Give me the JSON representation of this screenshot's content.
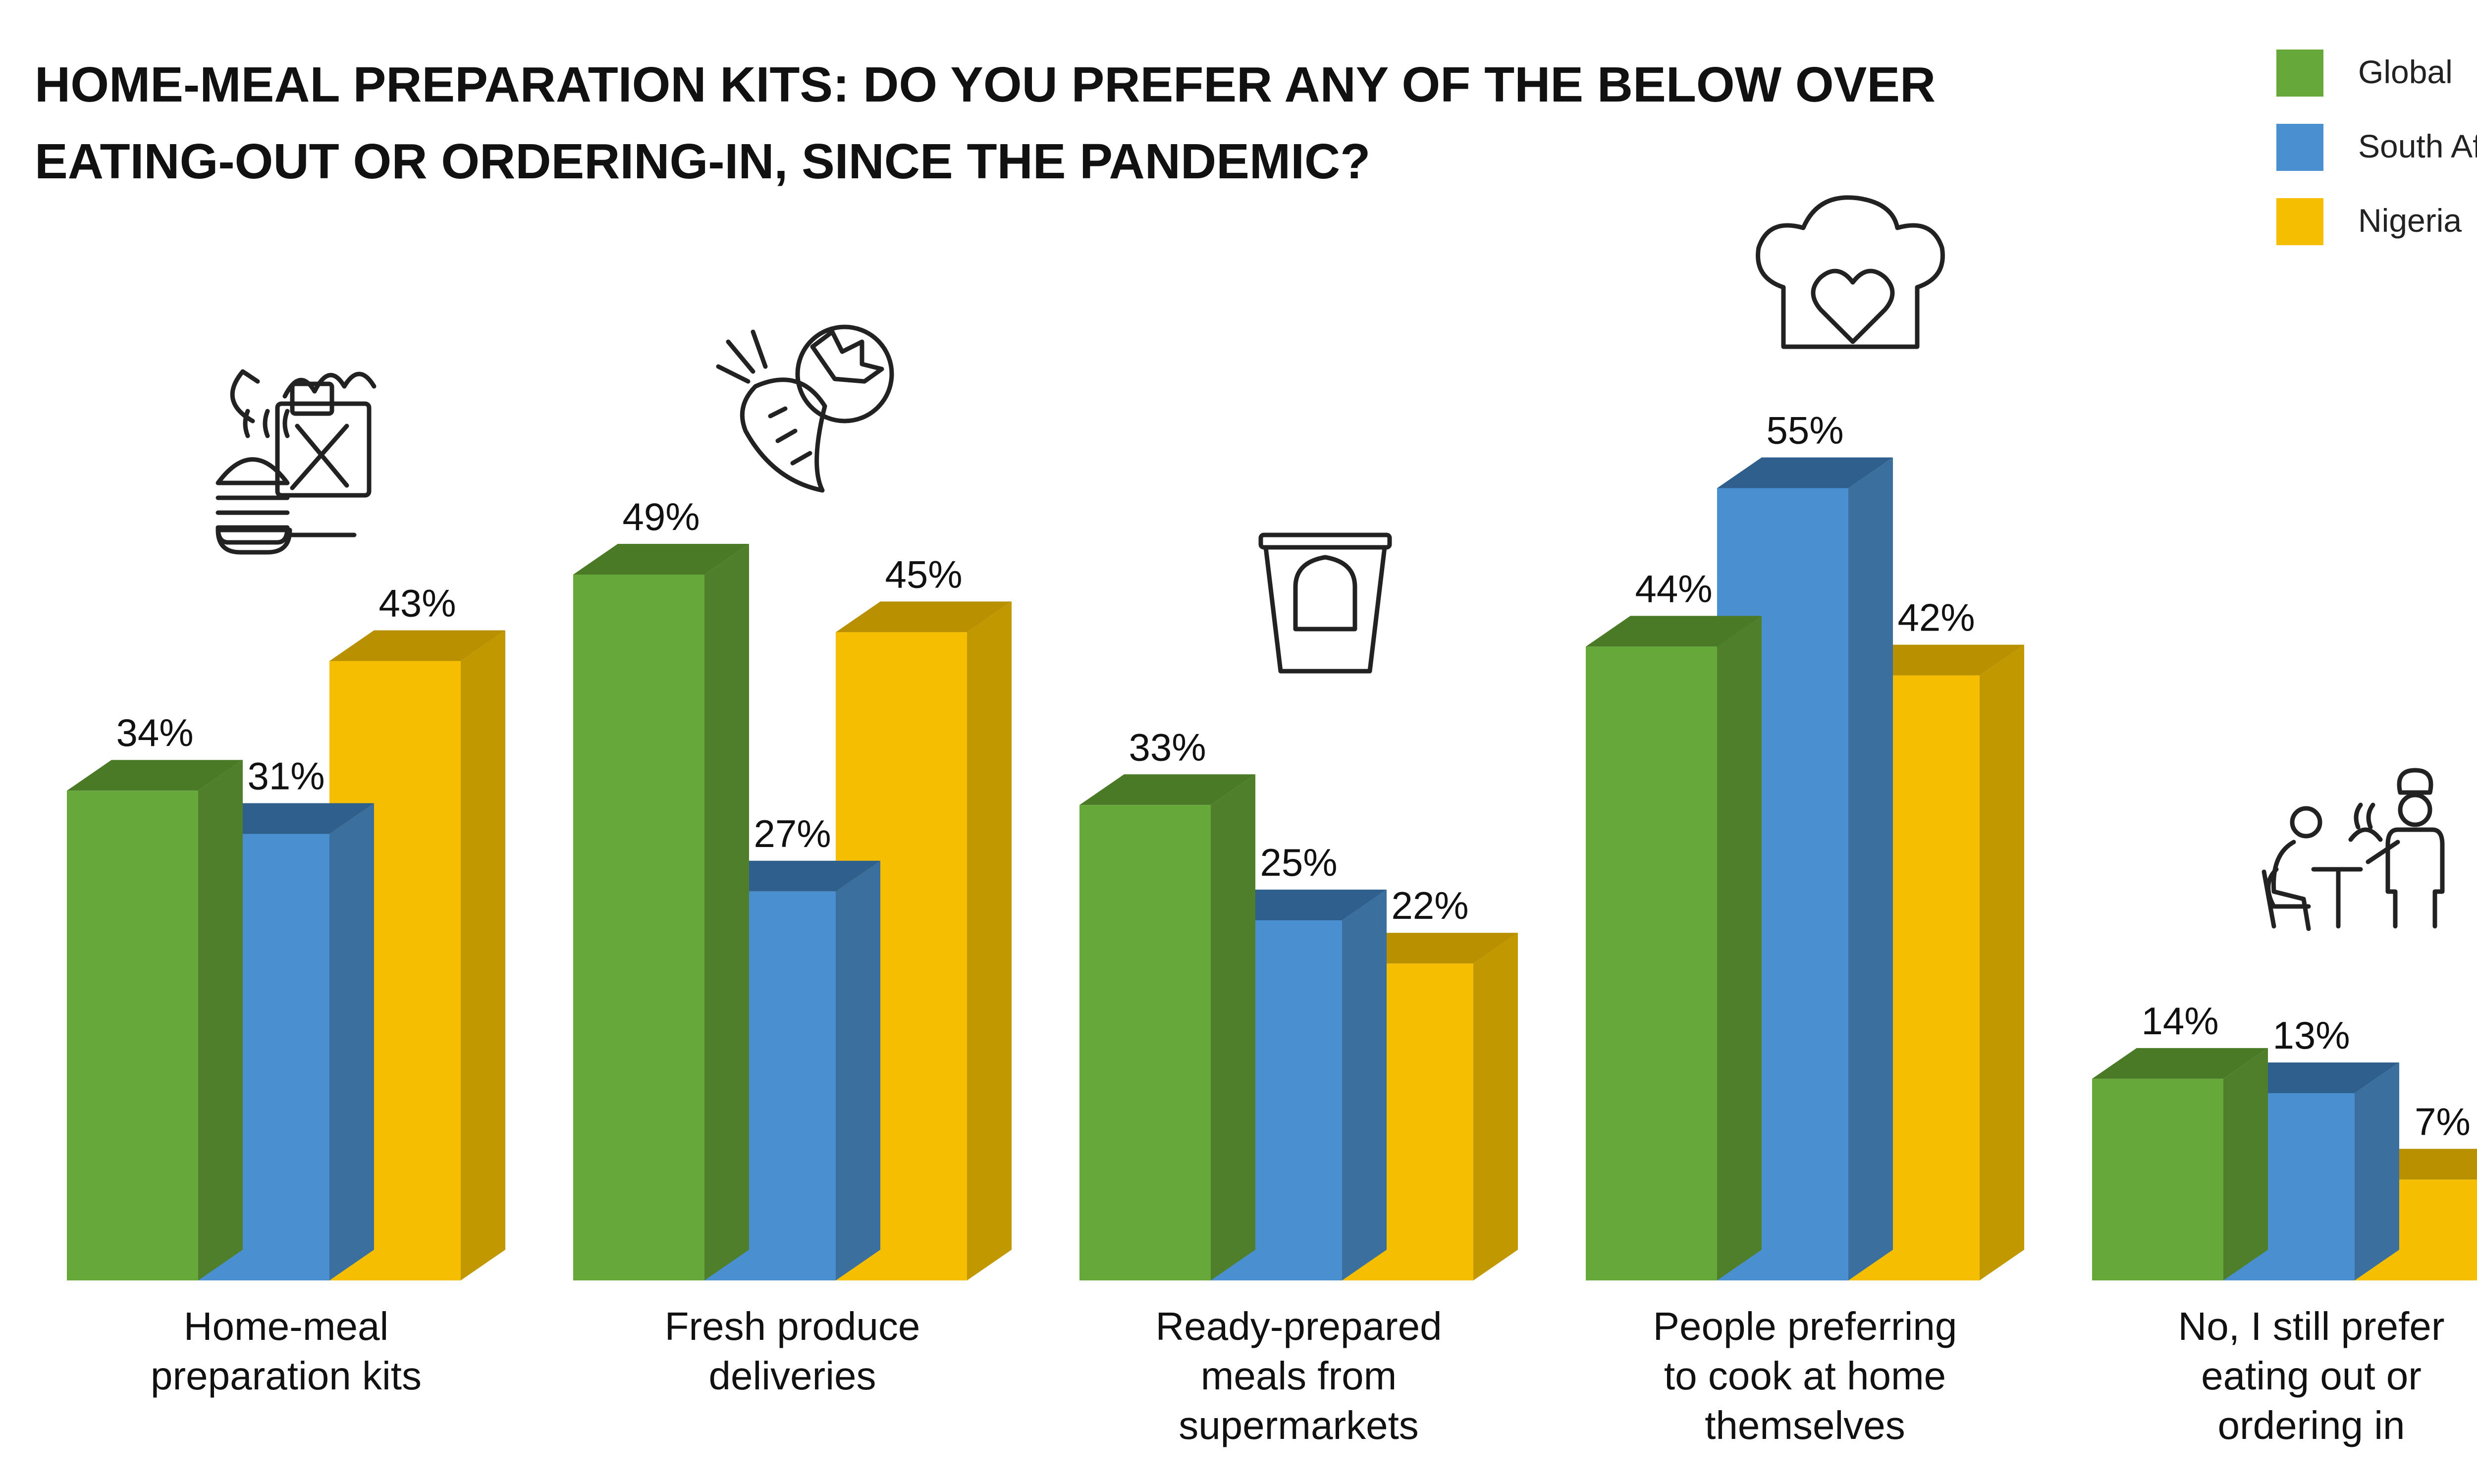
{
  "chart_data": {
    "type": "bar",
    "title": "HOME-MEAL PREPARATION KITS: DO YOU PREFER ANY OF THE BELOW OVER EATING-OUT OR ORDERING-IN, SINCE THE PANDEMIC?",
    "title_lines": [
      "HOME-MEAL PREPARATION KITS: DO YOU PREFER ANY OF THE BELOW OVER",
      "EATING-OUT OR ORDERING-IN, SINCE THE PANDEMIC?"
    ],
    "categories": [
      "Home-meal preparation kits",
      "Fresh produce deliveries",
      "Ready-prepared meals from supermarkets",
      "People preferring to cook at home themselves",
      "No, I still prefer eating out or ordering in"
    ],
    "category_lines": [
      [
        "Home-meal",
        "preparation kits"
      ],
      [
        "Fresh produce",
        "deliveries"
      ],
      [
        "Ready-prepared",
        "meals from",
        "supermarkets"
      ],
      [
        "People preferring",
        "to cook at home",
        "themselves"
      ],
      [
        "No, I still prefer",
        "eating out or",
        "ordering in"
      ]
    ],
    "series": [
      {
        "name": "Global",
        "color": "#66A83A",
        "side_color": "#4F7F2B",
        "top_color": "#4A7A26",
        "values": [
          34,
          49,
          33,
          44,
          14
        ]
      },
      {
        "name": "South Africa",
        "color": "#4A8FD0",
        "side_color": "#3A6F9E",
        "top_color": "#2F5F8C",
        "values": [
          31,
          27,
          25,
          55,
          13
        ]
      },
      {
        "name": "Nigeria",
        "color": "#F5BE00",
        "side_color": "#C29800",
        "top_color": "#B89000",
        "values": [
          43,
          45,
          22,
          42,
          7
        ]
      }
    ],
    "value_labels": [
      [
        "34%",
        "49%",
        "33%",
        "44%",
        "14%"
      ],
      [
        "31%",
        "27%",
        "25%",
        "55%",
        "13%"
      ],
      [
        "43%",
        "45%",
        "22%",
        "42%",
        "7%"
      ]
    ],
    "unit": "%",
    "legend_position": "top-right",
    "grid": false,
    "icons": [
      "meal-kit-icon",
      "carrot-tomato-icon",
      "ready-meal-cup-icon",
      "chef-hat-heart-icon",
      "restaurant-waiter-icon"
    ]
  }
}
